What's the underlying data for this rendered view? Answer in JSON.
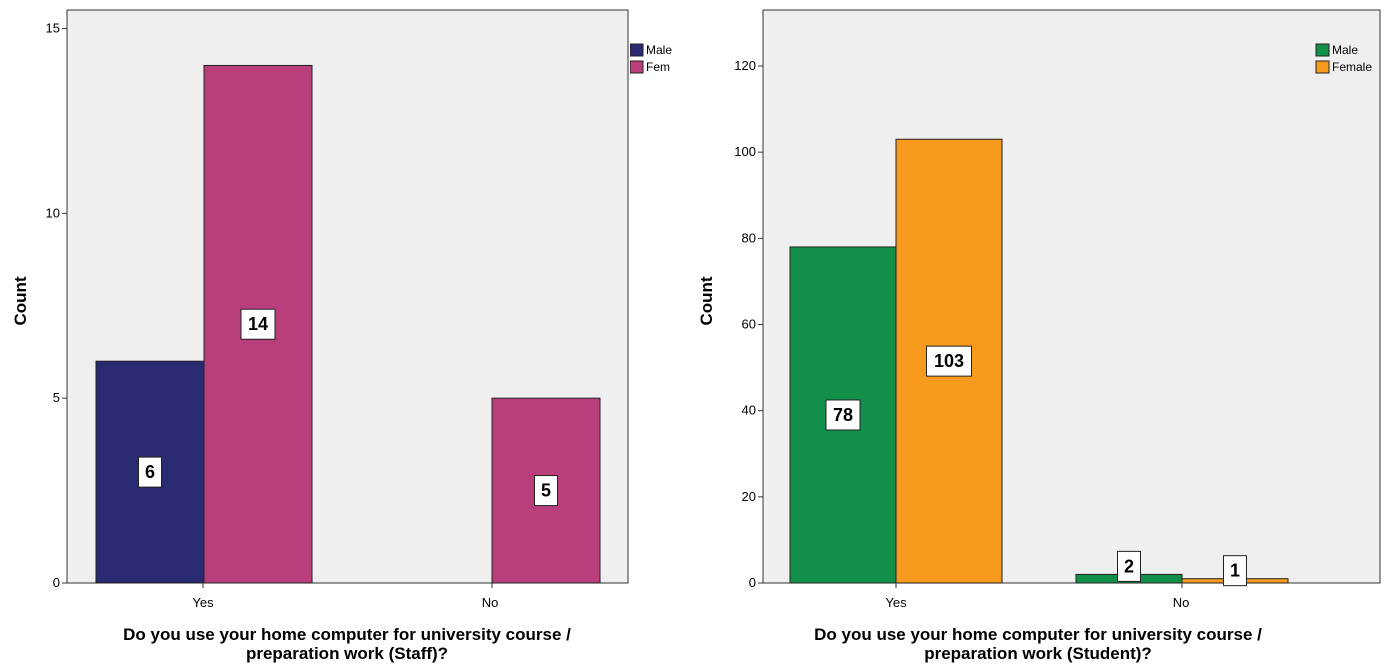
{
  "chart_data": [
    {
      "type": "bar",
      "xlabel_lines": [
        "Do you use your home computer for university course /",
        "preparation work (Staff)?"
      ],
      "ylabel": "Count",
      "categories": [
        "Yes",
        "No"
      ],
      "series": [
        {
          "name": "Male",
          "values": [
            6,
            null
          ],
          "color": "#2A2A72"
        },
        {
          "name": "Fem",
          "values": [
            14,
            5
          ],
          "color": "#B93E7C"
        }
      ],
      "ylim": [
        0,
        15.5
      ],
      "yticks": [
        0,
        5,
        10,
        15
      ],
      "data_labels": [
        [
          "6",
          ""
        ],
        [
          "14",
          "5"
        ]
      ],
      "grid": false,
      "legend_position": "top-right",
      "plot_background": "#EFEFEF"
    },
    {
      "type": "bar",
      "xlabel_lines": [
        "Do you use your home computer for university course /",
        "preparation work (Student)?"
      ],
      "ylabel": "Count",
      "categories": [
        "Yes",
        "No"
      ],
      "series": [
        {
          "name": "Male",
          "values": [
            78,
            2
          ],
          "color": "#12904A"
        },
        {
          "name": "Female",
          "values": [
            103,
            1
          ],
          "color": "#F79A1E"
        }
      ],
      "ylim": [
        0,
        133
      ],
      "yticks": [
        0,
        20,
        40,
        60,
        80,
        100,
        120
      ],
      "data_labels": [
        [
          "78",
          "2"
        ],
        [
          "103",
          "1"
        ]
      ],
      "grid": false,
      "legend_position": "top-right",
      "plot_background": "#EFEFEF"
    }
  ]
}
